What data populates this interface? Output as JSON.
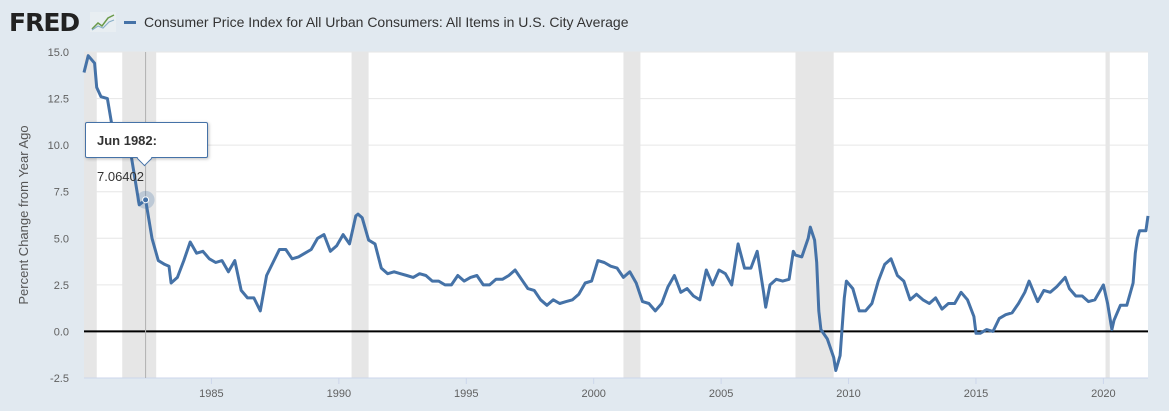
{
  "header": {
    "logo": "FRED",
    "series_title": "Consumer Price Index for All Urban Consumers: All Items in U.S. City Average"
  },
  "tooltip": {
    "date": "Jun 1982:",
    "value": "7.06402"
  },
  "chart_data": {
    "type": "line",
    "title": "",
    "ylabel": "Percent Change from Year Ago",
    "xlabel": "",
    "ylim": [
      -2.5,
      15.0
    ],
    "xlim": [
      "1980-01",
      "2021-10"
    ],
    "yticks": [
      "-2.5",
      "0.0",
      "2.5",
      "5.0",
      "7.5",
      "10.0",
      "12.5",
      "15.0"
    ],
    "xticks": [
      "1985",
      "1990",
      "1995",
      "2000",
      "2005",
      "2010",
      "2015",
      "2020"
    ],
    "grid": true,
    "line_color": "#4572a7",
    "recession_color": "#e6e6e6",
    "recessions": [
      [
        "1980-01",
        "1980-07"
      ],
      [
        "1981-07",
        "1982-11"
      ],
      [
        "1990-07",
        "1991-03"
      ],
      [
        "2001-03",
        "2001-11"
      ],
      [
        "2007-12",
        "2009-06"
      ],
      [
        "2020-02",
        "2020-04"
      ]
    ],
    "highlight": {
      "date": "1982-06",
      "value": 7.06402
    },
    "series": [
      {
        "x": [
          "1980-01",
          "1980-03",
          "1980-06",
          "1980-07",
          "1980-09",
          "1980-12",
          "1981-03",
          "1981-06",
          "1981-09",
          "1981-12",
          "1982-03",
          "1982-06",
          "1982-09",
          "1982-12",
          "1983-03",
          "1983-05",
          "1983-06",
          "1983-09",
          "1983-12",
          "1984-03",
          "1984-06",
          "1984-09",
          "1984-12",
          "1985-03",
          "1985-06",
          "1985-09",
          "1985-12",
          "1986-03",
          "1986-06",
          "1986-09",
          "1986-12",
          "1987-03",
          "1987-06",
          "1987-09",
          "1987-12",
          "1988-03",
          "1988-06",
          "1988-09",
          "1988-12",
          "1989-03",
          "1989-06",
          "1989-09",
          "1989-12",
          "1990-03",
          "1990-06",
          "1990-09",
          "1990-10",
          "1990-12",
          "1991-03",
          "1991-06",
          "1991-09",
          "1991-12",
          "1992-03",
          "1992-06",
          "1992-09",
          "1992-12",
          "1993-03",
          "1993-06",
          "1993-09",
          "1993-12",
          "1994-03",
          "1994-06",
          "1994-09",
          "1994-12",
          "1995-03",
          "1995-06",
          "1995-09",
          "1995-12",
          "1996-03",
          "1996-06",
          "1996-09",
          "1996-12",
          "1997-03",
          "1997-06",
          "1997-09",
          "1997-12",
          "1998-03",
          "1998-06",
          "1998-09",
          "1998-12",
          "1999-03",
          "1999-06",
          "1999-09",
          "1999-12",
          "2000-03",
          "2000-06",
          "2000-09",
          "2000-12",
          "2001-03",
          "2001-06",
          "2001-09",
          "2001-12",
          "2002-03",
          "2002-06",
          "2002-09",
          "2002-12",
          "2003-03",
          "2003-06",
          "2003-09",
          "2003-12",
          "2004-03",
          "2004-06",
          "2004-09",
          "2004-12",
          "2005-03",
          "2005-06",
          "2005-09",
          "2005-12",
          "2006-03",
          "2006-06",
          "2006-09",
          "2006-10",
          "2006-12",
          "2007-03",
          "2007-06",
          "2007-09",
          "2007-11",
          "2007-12",
          "2008-03",
          "2008-06",
          "2008-07",
          "2008-09",
          "2008-10",
          "2008-11",
          "2008-12",
          "2009-03",
          "2009-06",
          "2009-07",
          "2009-09",
          "2009-11",
          "2009-12",
          "2010-03",
          "2010-06",
          "2010-09",
          "2010-12",
          "2011-03",
          "2011-06",
          "2011-09",
          "2011-12",
          "2012-03",
          "2012-06",
          "2012-09",
          "2012-12",
          "2013-03",
          "2013-06",
          "2013-09",
          "2013-12",
          "2014-03",
          "2014-06",
          "2014-09",
          "2014-12",
          "2015-01",
          "2015-03",
          "2015-06",
          "2015-09",
          "2015-12",
          "2016-03",
          "2016-06",
          "2016-09",
          "2016-12",
          "2017-02",
          "2017-06",
          "2017-09",
          "2017-12",
          "2018-03",
          "2018-07",
          "2018-09",
          "2018-12",
          "2019-03",
          "2019-06",
          "2019-09",
          "2019-12",
          "2020-01",
          "2020-03",
          "2020-05",
          "2020-06",
          "2020-09",
          "2020-12",
          "2021-03",
          "2021-04",
          "2021-05",
          "2021-06",
          "2021-09",
          "2021-10"
        ],
        "y": [
          13.9,
          14.8,
          14.4,
          13.1,
          12.6,
          12.5,
          10.5,
          9.6,
          11.0,
          8.9,
          6.8,
          7.06402,
          5.0,
          3.8,
          3.6,
          3.5,
          2.6,
          2.9,
          3.8,
          4.8,
          4.2,
          4.3,
          3.9,
          3.7,
          3.8,
          3.2,
          3.8,
          2.2,
          1.8,
          1.8,
          1.1,
          3.0,
          3.7,
          4.4,
          4.4,
          3.9,
          4.0,
          4.2,
          4.4,
          5.0,
          5.2,
          4.3,
          4.6,
          5.2,
          4.7,
          6.2,
          6.3,
          6.1,
          4.9,
          4.7,
          3.4,
          3.1,
          3.2,
          3.1,
          3.0,
          2.9,
          3.1,
          3.0,
          2.7,
          2.7,
          2.5,
          2.5,
          3.0,
          2.7,
          2.9,
          3.0,
          2.5,
          2.5,
          2.8,
          2.8,
          3.0,
          3.3,
          2.8,
          2.3,
          2.2,
          1.7,
          1.4,
          1.7,
          1.5,
          1.6,
          1.7,
          2.0,
          2.6,
          2.7,
          3.8,
          3.7,
          3.5,
          3.4,
          2.9,
          3.2,
          2.6,
          1.6,
          1.5,
          1.1,
          1.5,
          2.4,
          3.0,
          2.1,
          2.3,
          1.9,
          1.7,
          3.3,
          2.5,
          3.3,
          3.1,
          2.5,
          4.7,
          3.4,
          3.4,
          4.3,
          2.1,
          1.3,
          2.5,
          2.8,
          2.7,
          2.8,
          4.3,
          4.1,
          4.0,
          5.0,
          5.6,
          4.9,
          3.7,
          1.1,
          0.1,
          -0.4,
          -1.4,
          -2.1,
          -1.3,
          1.8,
          2.7,
          2.3,
          1.1,
          1.1,
          1.5,
          2.7,
          3.6,
          3.9,
          3.0,
          2.7,
          1.7,
          2.0,
          1.7,
          1.5,
          1.8,
          1.2,
          1.5,
          1.5,
          2.1,
          1.7,
          0.8,
          -0.1,
          -0.1,
          0.1,
          0.0,
          0.7,
          0.9,
          1.0,
          1.5,
          2.1,
          2.7,
          1.6,
          2.2,
          2.1,
          2.4,
          2.9,
          2.3,
          1.9,
          1.9,
          1.6,
          1.7,
          2.3,
          2.5,
          1.5,
          0.1,
          0.6,
          1.4,
          1.4,
          2.6,
          4.2,
          5.0,
          5.4,
          5.4,
          6.2
        ]
      }
    ]
  }
}
